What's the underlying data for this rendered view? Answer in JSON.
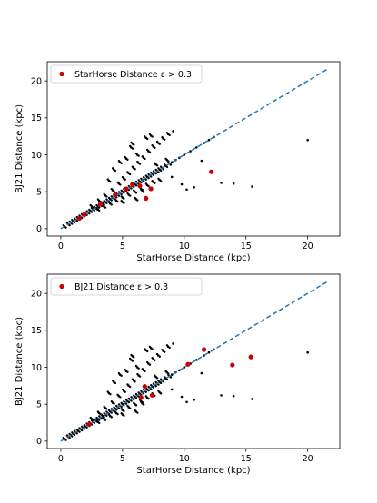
{
  "chart_data": [
    {
      "type": "scatter",
      "xlabel": "StarHorse Distance (kpc)",
      "ylabel": "BJ21 Distance (kpc)",
      "xlim": [
        -1.1,
        22.6
      ],
      "ylim": [
        -1.0,
        22.6
      ],
      "xticks": [
        "0",
        "5",
        "10",
        "15",
        "20"
      ],
      "yticks": [
        "0",
        "5",
        "10",
        "15",
        "20"
      ],
      "grid": false,
      "legend_position": "top-left",
      "reference_line": {
        "name": "",
        "color": "#1f77b4",
        "style": "dashed",
        "x": [
          0,
          21.6
        ],
        "y": [
          0,
          21.6
        ]
      },
      "series": [
        {
          "name": "",
          "color": "#000000",
          "x": [
            0.3,
            0.6,
            0.8,
            1.0,
            1.2,
            1.4,
            1.6,
            1.8,
            2.0,
            2.2,
            2.4,
            2.6,
            2.8,
            3.0,
            3.2,
            3.4,
            3.6,
            3.8,
            4.0,
            4.2,
            4.4,
            4.6,
            4.8,
            5.0,
            5.2,
            5.4,
            5.6,
            5.8,
            6.0,
            6.2,
            6.4,
            6.6,
            6.8,
            7.0,
            7.2,
            7.4,
            7.6,
            7.8,
            8.0,
            8.2,
            8.5,
            8.8,
            9.0,
            9.3,
            9.6,
            10.0,
            10.5,
            11.0,
            11.6,
            12.0,
            12.4,
            2.5,
            3.1,
            3.6,
            4.2,
            4.7,
            5.1,
            5.5,
            5.9,
            6.3,
            6.7,
            7.1,
            7.5,
            7.9,
            8.3,
            8.7,
            9.1,
            3.0,
            3.5,
            4.0,
            4.5,
            5.0,
            5.5,
            6.0,
            6.5,
            7.0,
            7.5,
            8.0,
            9.0,
            6.2,
            5.8,
            4.8,
            4.3,
            3.9,
            5.3,
            5.7,
            6.9,
            7.3,
            7.7,
            8.6,
            6.1,
            5.0,
            6.6,
            9.8,
            10.2,
            10.8,
            11.4,
            13.0,
            14.0,
            15.5,
            20.0
          ],
          "y": [
            0.3,
            0.6,
            0.8,
            1.0,
            1.2,
            1.4,
            1.6,
            1.8,
            2.0,
            2.2,
            2.4,
            2.6,
            2.8,
            3.0,
            3.2,
            3.4,
            3.6,
            3.8,
            4.0,
            4.2,
            4.4,
            4.6,
            4.8,
            5.0,
            5.2,
            5.4,
            5.6,
            5.8,
            6.0,
            6.2,
            6.4,
            6.6,
            6.8,
            7.0,
            7.2,
            7.4,
            7.6,
            7.8,
            8.0,
            8.2,
            8.5,
            8.8,
            9.0,
            9.3,
            9.6,
            10.0,
            10.5,
            11.0,
            11.6,
            12.0,
            12.4,
            3.0,
            3.8,
            4.5,
            5.2,
            6.1,
            6.8,
            7.5,
            8.2,
            8.9,
            9.6,
            10.5,
            11.1,
            11.6,
            12.2,
            12.8,
            13.2,
            2.6,
            3.0,
            3.4,
            3.8,
            4.2,
            4.6,
            5.0,
            5.4,
            5.9,
            6.3,
            6.6,
            7.0,
            10.0,
            11.5,
            9.0,
            8.0,
            6.5,
            9.5,
            11.0,
            12.3,
            12.6,
            8.7,
            9.3,
            4.0,
            3.6,
            5.1,
            6.0,
            5.3,
            5.6,
            9.2,
            6.2,
            6.1,
            5.7,
            12.0
          ]
        },
        {
          "name": "StarHorse Distance ε  > 0.3",
          "color": "#cc0000",
          "x": [
            1.5,
            1.9,
            3.2,
            4.4,
            5.3,
            5.8,
            6.4,
            6.9,
            7.3,
            12.2
          ],
          "y": [
            1.4,
            1.9,
            3.3,
            4.6,
            5.4,
            6.0,
            5.8,
            4.1,
            5.4,
            7.7
          ]
        }
      ]
    },
    {
      "type": "scatter",
      "xlabel": "StarHorse Distance (kpc)",
      "ylabel": "BJ21 Distance (kpc)",
      "xlim": [
        -1.1,
        22.6
      ],
      "ylim": [
        -1.0,
        22.6
      ],
      "xticks": [
        "0",
        "5",
        "10",
        "15",
        "20"
      ],
      "yticks": [
        "0",
        "5",
        "10",
        "15",
        "20"
      ],
      "grid": false,
      "legend_position": "top-left",
      "reference_line": {
        "name": "",
        "color": "#1f77b4",
        "style": "dashed",
        "x": [
          0,
          21.6
        ],
        "y": [
          0,
          21.6
        ]
      },
      "series": [
        {
          "name": "",
          "color": "#000000",
          "x": [
            0.3,
            0.6,
            0.8,
            1.0,
            1.2,
            1.4,
            1.6,
            1.8,
            2.0,
            2.2,
            2.4,
            2.6,
            2.8,
            3.0,
            3.2,
            3.4,
            3.6,
            3.8,
            4.0,
            4.2,
            4.4,
            4.6,
            4.8,
            5.0,
            5.2,
            5.4,
            5.6,
            5.8,
            6.0,
            6.2,
            6.4,
            6.6,
            6.8,
            7.0,
            7.2,
            7.4,
            7.6,
            7.8,
            8.0,
            8.2,
            8.5,
            8.8,
            9.0,
            9.3,
            9.6,
            10.0,
            10.5,
            11.0,
            11.6,
            12.0,
            12.4,
            2.5,
            3.1,
            3.6,
            4.2,
            4.7,
            5.1,
            5.5,
            5.9,
            6.3,
            6.7,
            7.1,
            7.5,
            7.9,
            8.3,
            8.7,
            9.1,
            3.0,
            3.5,
            4.0,
            4.5,
            5.0,
            5.5,
            6.0,
            6.5,
            7.0,
            7.5,
            8.0,
            9.0,
            6.2,
            5.8,
            4.8,
            4.3,
            3.9,
            5.3,
            5.7,
            6.9,
            7.3,
            7.7,
            8.6,
            6.1,
            5.0,
            6.6,
            9.8,
            10.2,
            10.8,
            11.4,
            13.0,
            14.0,
            15.5,
            20.0
          ],
          "y": [
            0.3,
            0.6,
            0.8,
            1.0,
            1.2,
            1.4,
            1.6,
            1.8,
            2.0,
            2.2,
            2.4,
            2.6,
            2.8,
            3.0,
            3.2,
            3.4,
            3.6,
            3.8,
            4.0,
            4.2,
            4.4,
            4.6,
            4.8,
            5.0,
            5.2,
            5.4,
            5.6,
            5.8,
            6.0,
            6.2,
            6.4,
            6.6,
            6.8,
            7.0,
            7.2,
            7.4,
            7.6,
            7.8,
            8.0,
            8.2,
            8.5,
            8.8,
            9.0,
            9.3,
            9.6,
            10.0,
            10.5,
            11.0,
            11.6,
            12.0,
            12.4,
            3.0,
            3.8,
            4.5,
            5.2,
            6.1,
            6.8,
            7.5,
            8.2,
            8.9,
            9.6,
            10.5,
            11.1,
            11.6,
            12.2,
            12.8,
            13.2,
            2.6,
            3.0,
            3.4,
            3.8,
            4.2,
            4.6,
            5.0,
            5.4,
            5.9,
            6.3,
            6.6,
            7.0,
            10.0,
            11.5,
            9.0,
            8.0,
            6.5,
            9.5,
            11.0,
            12.3,
            12.6,
            8.7,
            9.3,
            4.0,
            3.6,
            5.1,
            6.0,
            5.3,
            5.6,
            9.2,
            6.2,
            6.1,
            5.7,
            12.0
          ]
        },
        {
          "name": "BJ21 Distance ε  > 0.3",
          "color": "#cc0000",
          "x": [
            2.3,
            6.5,
            6.8,
            7.4,
            10.3,
            11.6,
            13.9,
            15.4
          ],
          "y": [
            2.3,
            5.9,
            7.4,
            6.2,
            10.4,
            12.4,
            10.3,
            11.4
          ]
        }
      ]
    }
  ]
}
